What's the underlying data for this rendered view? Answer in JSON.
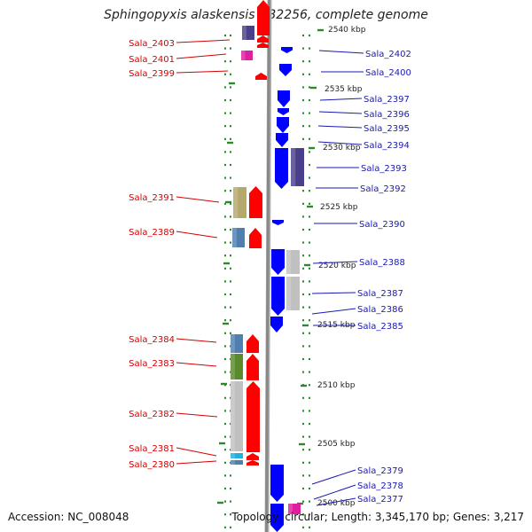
{
  "title": "Sphingopyxis alaskensis RB2256, complete genome",
  "accession": "Accession: NC_008048",
  "topology": "Topology: circular; Length: 3,345,170 bp; Genes: 3,217",
  "colors": {
    "forward_strand": "#ff0000",
    "reverse_strand": "#0000ff",
    "label_forward": "#d40000",
    "label_reverse": "#1a1ab0",
    "backbone": "#888888",
    "tick": "#2a8a2a",
    "cog_purple": "#4a3f8a",
    "cog_magenta": "#e01fa0",
    "cog_olive": "#b5a86a",
    "cog_steel": "#4f7fb0",
    "cog_green": "#5a8a2a",
    "cog_gray": "#c0c0c0",
    "cog_cyan": "#20b0e0"
  },
  "scale_marks": [
    {
      "label": "2540 kbp",
      "kbp": 2540
    },
    {
      "label": "2535 kbp",
      "kbp": 2535
    },
    {
      "label": "2530 kbp",
      "kbp": 2530
    },
    {
      "label": "2525 kbp",
      "kbp": 2525
    },
    {
      "label": "2520 kbp",
      "kbp": 2520
    },
    {
      "label": "2515 kbp",
      "kbp": 2515
    },
    {
      "label": "2510 kbp",
      "kbp": 2510
    },
    {
      "label": "2505 kbp",
      "kbp": 2505
    },
    {
      "label": "2500 kbp",
      "kbp": 2500
    }
  ],
  "left_labels": [
    "Sala_2403",
    "Sala_2401",
    "Sala_2399",
    "Sala_2391",
    "Sala_2389",
    "Sala_2384",
    "Sala_2383",
    "Sala_2382",
    "Sala_2381",
    "Sala_2380"
  ],
  "right_labels": [
    "Sala_2402",
    "Sala_2400",
    "Sala_2397",
    "Sala_2396",
    "Sala_2395",
    "Sala_2394",
    "Sala_2393",
    "Sala_2392",
    "Sala_2390",
    "Sala_2388",
    "Sala_2387",
    "Sala_2386",
    "Sala_2385",
    "Sala_2379",
    "Sala_2378",
    "Sala_2377"
  ]
}
